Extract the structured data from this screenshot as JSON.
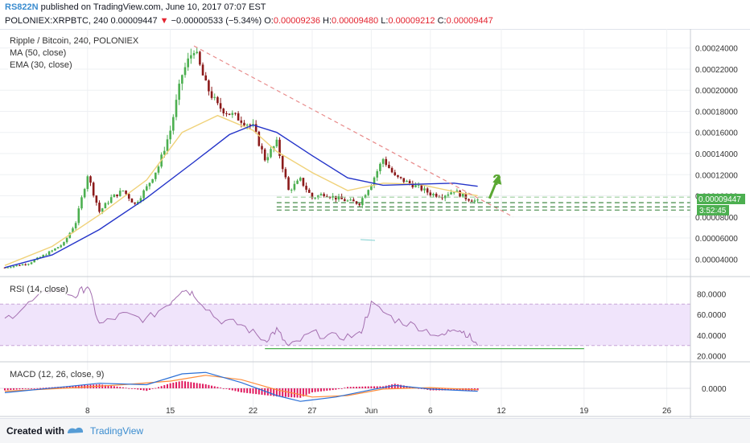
{
  "header": {
    "username": "RS822N",
    "published": "published on TradingView.com, June 10, 2017 07:07 EST",
    "symbol": "POLONIEX:XRPBTC, 240",
    "last": "0.00009447",
    "arrow": "▼",
    "change": "−0.00000533 (−5.34%)",
    "o_label": "O:",
    "o": "0.00009236",
    "h_label": "H:",
    "h": "0.00009480",
    "l_label": "L:",
    "l": "0.00009212",
    "c_label": "C:",
    "c": "0.00009447"
  },
  "legend": {
    "title": "Ripple / Bitcoin, 240, POLONIEX",
    "ma": "MA (50, close)",
    "ema": "EMA (30, close)",
    "rsi": "RSI (14, close)",
    "macd": "MACD (12, 26, close, 9)"
  },
  "price_tag": "0.00009447",
  "countdown": "3:52:45",
  "annotation": "?",
  "footer": {
    "created_with": "Created with",
    "brand": "TradingView"
  },
  "colors": {
    "up": "#4caf50",
    "down": "#8b1a1a",
    "ma": "#2434c9",
    "ema": "#f0d27a",
    "rsi": "#a46fb0",
    "rsi_band": "#f0e4fb",
    "trend": "#e88a8a",
    "support": "#2e7d32",
    "annot": "#5aa832",
    "macd_line": "#2a6fd6",
    "signal": "#ff8c3a",
    "hist": "#e0195e"
  },
  "chart_data": [
    {
      "type": "candlestick",
      "name": "price",
      "x_ticks": [
        "8",
        "15",
        "22",
        "27",
        "Jun",
        "6",
        "12",
        "19",
        "26"
      ],
      "y_ticks": [
        "0.00004000",
        "0.00006000",
        "0.00008000",
        "0.00010000",
        "0.00012000",
        "0.00014000",
        "0.00016000",
        "0.00018000",
        "0.00020000",
        "0.00022000",
        "0.00024000"
      ],
      "ylim": [
        2.5e-05,
        0.000255
      ],
      "x_domain": [
        "2017-05-01",
        "2017-06-28"
      ],
      "close_path": [
        [
          "2017-05-01",
          3.2e-05
        ],
        [
          "2017-05-03",
          3.6e-05
        ],
        [
          "2017-05-05",
          4.8e-05
        ],
        [
          "2017-05-06",
          5.5e-05
        ],
        [
          "2017-05-07",
          7.5e-05
        ],
        [
          "2017-05-08",
          0.00012
        ],
        [
          "2017-05-09",
          8.5e-05
        ],
        [
          "2017-05-10",
          9.8e-05
        ],
        [
          "2017-05-11",
          0.000105
        ],
        [
          "2017-05-12",
          9.2e-05
        ],
        [
          "2017-05-13",
          0.000108
        ],
        [
          "2017-05-14",
          0.000128
        ],
        [
          "2017-05-15",
          0.000162
        ],
        [
          "2017-05-16",
          0.000215
        ],
        [
          "2017-05-17",
          0.00024
        ],
        [
          "2017-05-18",
          0.000205
        ],
        [
          "2017-05-19",
          0.000185
        ],
        [
          "2017-05-20",
          0.000178
        ],
        [
          "2017-05-21",
          0.000172
        ],
        [
          "2017-05-22",
          0.000165
        ],
        [
          "2017-05-23",
          0.000135
        ],
        [
          "2017-05-24",
          0.00015
        ],
        [
          "2017-05-25",
          0.000105
        ],
        [
          "2017-05-26",
          0.000115
        ],
        [
          "2017-05-27",
          9.8e-05
        ],
        [
          "2017-05-28",
          0.000102
        ],
        [
          "2017-05-29",
          9.8e-05
        ],
        [
          "2017-05-30",
          9.5e-05
        ],
        [
          "2017-05-31",
          9.3e-05
        ],
        [
          "2017-06-01",
          0.000112
        ],
        [
          "2017-06-02",
          0.000135
        ],
        [
          "2017-06-03",
          0.000118
        ],
        [
          "2017-06-04",
          0.000113
        ],
        [
          "2017-06-05",
          0.000108
        ],
        [
          "2017-06-06",
          0.000102
        ],
        [
          "2017-06-07",
          0.0001
        ],
        [
          "2017-06-08",
          0.000105
        ],
        [
          "2017-06-09",
          9.8e-05
        ],
        [
          "2017-06-10",
          9.45e-05
        ]
      ],
      "ma50": [
        [
          "2017-05-01",
          3.2e-05
        ],
        [
          "2017-05-05",
          4.4e-05
        ],
        [
          "2017-05-09",
          6.8e-05
        ],
        [
          "2017-05-13",
          9.8e-05
        ],
        [
          "2017-05-17",
          0.000132
        ],
        [
          "2017-05-20",
          0.000158
        ],
        [
          "2017-05-22",
          0.000167
        ],
        [
          "2017-05-24",
          0.00016
        ],
        [
          "2017-05-27",
          0.000138
        ],
        [
          "2017-05-30",
          0.000117
        ],
        [
          "2017-06-02",
          0.00011
        ],
        [
          "2017-06-05",
          0.000111
        ],
        [
          "2017-06-08",
          0.000112
        ],
        [
          "2017-06-10",
          0.000109
        ]
      ],
      "ema30": [
        [
          "2017-05-01",
          3.4e-05
        ],
        [
          "2017-05-05",
          5.2e-05
        ],
        [
          "2017-05-09",
          8.2e-05
        ],
        [
          "2017-05-13",
          0.000115
        ],
        [
          "2017-05-16",
          0.00016
        ],
        [
          "2017-05-19",
          0.000176
        ],
        [
          "2017-05-22",
          0.000162
        ],
        [
          "2017-05-24",
          0.000142
        ],
        [
          "2017-05-27",
          0.000122
        ],
        [
          "2017-05-30",
          0.000105
        ],
        [
          "2017-06-02",
          0.000112
        ],
        [
          "2017-06-05",
          0.000111
        ],
        [
          "2017-06-08",
          0.000104
        ],
        [
          "2017-06-10",
          0.0001
        ]
      ],
      "trendline": [
        [
          "2017-05-17",
          0.000242
        ],
        [
          "2017-06-13",
          8e-05
        ]
      ],
      "support_lines": [
        9.87e-05,
        9.35e-05,
        8.95e-05,
        8.65e-05
      ]
    },
    {
      "type": "line",
      "name": "RSI",
      "y_ticks": [
        "20.0000",
        "40.0000",
        "60.0000",
        "80.0000"
      ],
      "ylim": [
        15,
        95
      ],
      "band": [
        30,
        70
      ],
      "values": [
        [
          "2017-05-01",
          55
        ],
        [
          "2017-05-03",
          70
        ],
        [
          "2017-05-05",
          85
        ],
        [
          "2017-05-07",
          78
        ],
        [
          "2017-05-08",
          88
        ],
        [
          "2017-05-09",
          50
        ],
        [
          "2017-05-11",
          60
        ],
        [
          "2017-05-13",
          55
        ],
        [
          "2017-05-15",
          72
        ],
        [
          "2017-05-16",
          85
        ],
        [
          "2017-05-17",
          80
        ],
        [
          "2017-05-19",
          55
        ],
        [
          "2017-05-21",
          50
        ],
        [
          "2017-05-23",
          35
        ],
        [
          "2017-05-24",
          45
        ],
        [
          "2017-05-25",
          28
        ],
        [
          "2017-05-27",
          42
        ],
        [
          "2017-05-29",
          38
        ],
        [
          "2017-05-31",
          40
        ],
        [
          "2017-06-01",
          70
        ],
        [
          "2017-06-03",
          55
        ],
        [
          "2017-06-05",
          48
        ],
        [
          "2017-06-07",
          38
        ],
        [
          "2017-06-08",
          48
        ],
        [
          "2017-06-09",
          42
        ],
        [
          "2017-06-10",
          30
        ]
      ],
      "hline": [
        [
          "2017-05-23",
          27
        ],
        [
          "2017-06-19",
          27
        ]
      ]
    },
    {
      "type": "bar",
      "name": "MACD",
      "y_ticks": [
        "0.0000"
      ],
      "macd": [
        [
          "2017-05-01",
          -0.3
        ],
        [
          "2017-05-06",
          0.1
        ],
        [
          "2017-05-09",
          0.35
        ],
        [
          "2017-05-13",
          0.25
        ],
        [
          "2017-05-16",
          1.0
        ],
        [
          "2017-05-18",
          1.1
        ],
        [
          "2017-05-21",
          0.4
        ],
        [
          "2017-05-24",
          -0.5
        ],
        [
          "2017-05-26",
          -0.9
        ],
        [
          "2017-05-29",
          -0.6
        ],
        [
          "2017-06-01",
          -0.1
        ],
        [
          "2017-06-03",
          0.2
        ],
        [
          "2017-06-06",
          -0.05
        ],
        [
          "2017-06-10",
          -0.2
        ]
      ],
      "signal": [
        [
          "2017-05-01",
          -0.2
        ],
        [
          "2017-05-07",
          0.05
        ],
        [
          "2017-05-11",
          0.25
        ],
        [
          "2017-05-15",
          0.5
        ],
        [
          "2017-05-18",
          0.9
        ],
        [
          "2017-05-21",
          0.6
        ],
        [
          "2017-05-24",
          -0.1
        ],
        [
          "2017-05-27",
          -0.6
        ],
        [
          "2017-05-30",
          -0.5
        ],
        [
          "2017-06-02",
          -0.05
        ],
        [
          "2017-06-06",
          0.05
        ],
        [
          "2017-06-10",
          -0.1
        ]
      ]
    }
  ]
}
